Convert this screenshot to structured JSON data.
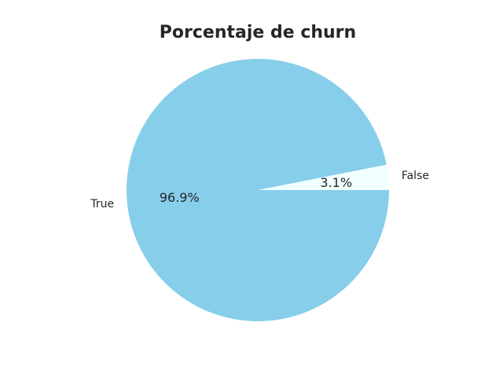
{
  "chart_data": {
    "type": "pie",
    "title": "Porcentaje de churn",
    "slices": [
      {
        "label": "False",
        "value": 3.1,
        "pct_label": "3.1%",
        "color": "#F0FFFF"
      },
      {
        "label": "True",
        "value": 96.9,
        "pct_label": "96.9%",
        "color": "#87CEEB"
      }
    ],
    "start_angle_deg": 0,
    "direction": "counterclockwise",
    "legend": "none"
  }
}
